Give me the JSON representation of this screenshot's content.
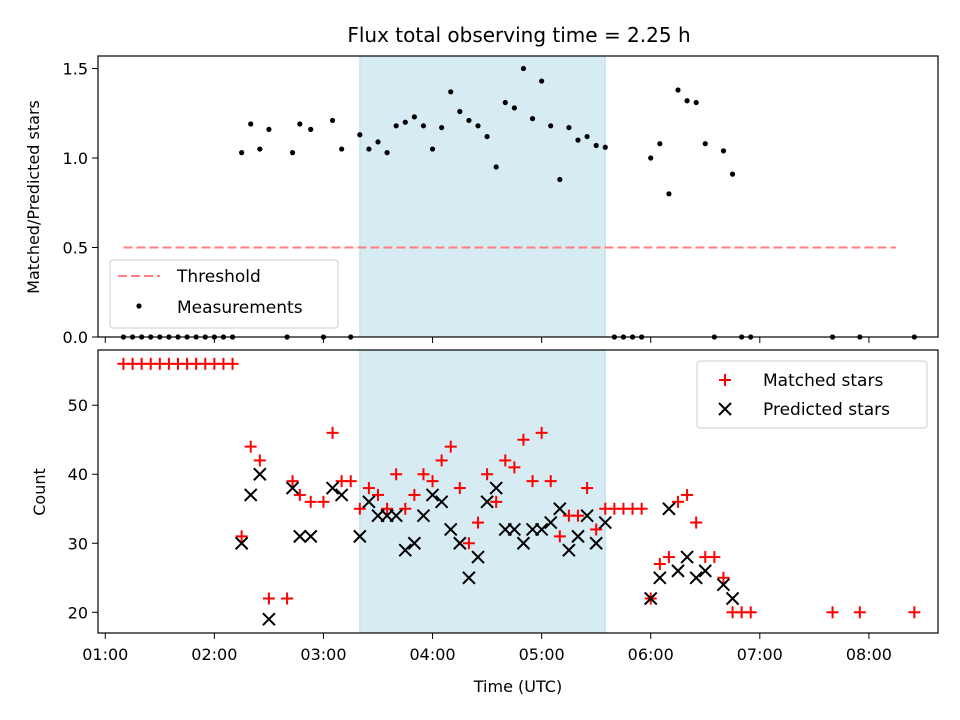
{
  "chart_data": [
    {
      "type": "scatter",
      "title": "Flux total observing time = 2.25 h",
      "ylabel": "Matched/Predicted stars",
      "xlabel": "",
      "ylim": [
        0,
        1.57
      ],
      "xlim": [
        "00:56",
        "08:38"
      ],
      "yticks": [
        "0.0",
        "0.5",
        "1.0",
        "1.5"
      ],
      "shaded_region": [
        "03:20",
        "05:35"
      ],
      "threshold": {
        "name": "Threshold",
        "value": 0.5,
        "x_start": "01:10",
        "x_end": "08:15",
        "color": "#ff7f7f"
      },
      "legend": {
        "placement": "lower-left",
        "entries": [
          "Threshold",
          "Measurements"
        ]
      },
      "series": [
        {
          "name": "Measurements",
          "color": "#000000",
          "points": [
            [
              "01:10",
              0
            ],
            [
              "01:15",
              0
            ],
            [
              "01:20",
              0
            ],
            [
              "01:25",
              0
            ],
            [
              "01:30",
              0
            ],
            [
              "01:35",
              0
            ],
            [
              "01:40",
              0
            ],
            [
              "01:45",
              0
            ],
            [
              "01:50",
              0
            ],
            [
              "01:55",
              0
            ],
            [
              "02:00",
              0
            ],
            [
              "02:05",
              0
            ],
            [
              "02:10",
              0
            ],
            [
              "02:15",
              1.03
            ],
            [
              "02:20",
              1.19
            ],
            [
              "02:25",
              1.05
            ],
            [
              "02:30",
              1.16
            ],
            [
              "02:40",
              0
            ],
            [
              "02:43",
              1.03
            ],
            [
              "02:47",
              1.19
            ],
            [
              "02:53",
              1.16
            ],
            [
              "03:00",
              0
            ],
            [
              "03:05",
              1.21
            ],
            [
              "03:10",
              1.05
            ],
            [
              "03:15",
              0
            ],
            [
              "03:20",
              1.13
            ],
            [
              "03:25",
              1.05
            ],
            [
              "03:30",
              1.09
            ],
            [
              "03:35",
              1.03
            ],
            [
              "03:40",
              1.18
            ],
            [
              "03:45",
              1.2
            ],
            [
              "03:50",
              1.23
            ],
            [
              "03:55",
              1.18
            ],
            [
              "04:00",
              1.05
            ],
            [
              "04:05",
              1.17
            ],
            [
              "04:10",
              1.37
            ],
            [
              "04:15",
              1.26
            ],
            [
              "04:20",
              1.21
            ],
            [
              "04:25",
              1.18
            ],
            [
              "04:30",
              1.12
            ],
            [
              "04:35",
              0.95
            ],
            [
              "04:40",
              1.31
            ],
            [
              "04:45",
              1.28
            ],
            [
              "04:50",
              1.5
            ],
            [
              "04:55",
              1.22
            ],
            [
              "05:00",
              1.43
            ],
            [
              "05:05",
              1.18
            ],
            [
              "05:10",
              0.88
            ],
            [
              "05:15",
              1.17
            ],
            [
              "05:20",
              1.1
            ],
            [
              "05:25",
              1.12
            ],
            [
              "05:30",
              1.07
            ],
            [
              "05:35",
              1.06
            ],
            [
              "05:40",
              0
            ],
            [
              "05:45",
              0
            ],
            [
              "05:50",
              0
            ],
            [
              "05:55",
              0
            ],
            [
              "06:00",
              1.0
            ],
            [
              "06:05",
              1.08
            ],
            [
              "06:10",
              0.8
            ],
            [
              "06:15",
              1.38
            ],
            [
              "06:20",
              1.32
            ],
            [
              "06:25",
              1.31
            ],
            [
              "06:30",
              1.08
            ],
            [
              "06:35",
              0
            ],
            [
              "06:40",
              1.04
            ],
            [
              "06:45",
              0.91
            ],
            [
              "06:50",
              0
            ],
            [
              "06:55",
              0
            ],
            [
              "07:40",
              0
            ],
            [
              "07:55",
              0
            ],
            [
              "08:25",
              0
            ]
          ]
        }
      ]
    },
    {
      "type": "scatter",
      "title": "",
      "ylabel": "Count",
      "xlabel": "Time (UTC)",
      "ylim": [
        17,
        58
      ],
      "xlim": [
        "00:56",
        "08:38"
      ],
      "yticks": [
        "20",
        "30",
        "40",
        "50"
      ],
      "xticks": [
        "01:00",
        "02:00",
        "03:00",
        "04:00",
        "05:00",
        "06:00",
        "07:00",
        "08:00"
      ],
      "shaded_region": [
        "03:20",
        "05:35"
      ],
      "legend": {
        "placement": "upper-right",
        "entries": [
          "Matched stars",
          "Predicted stars"
        ]
      },
      "series": [
        {
          "name": "Matched stars",
          "color": "#ff0000",
          "marker": "plus",
          "points": [
            [
              "01:10",
              56
            ],
            [
              "01:15",
              56
            ],
            [
              "01:20",
              56
            ],
            [
              "01:25",
              56
            ],
            [
              "01:30",
              56
            ],
            [
              "01:35",
              56
            ],
            [
              "01:40",
              56
            ],
            [
              "01:45",
              56
            ],
            [
              "01:50",
              56
            ],
            [
              "01:55",
              56
            ],
            [
              "02:00",
              56
            ],
            [
              "02:05",
              56
            ],
            [
              "02:10",
              56
            ],
            [
              "02:15",
              31
            ],
            [
              "02:20",
              44
            ],
            [
              "02:25",
              42
            ],
            [
              "02:30",
              22
            ],
            [
              "02:40",
              22
            ],
            [
              "02:43",
              39
            ],
            [
              "02:47",
              37
            ],
            [
              "02:53",
              36
            ],
            [
              "03:00",
              36
            ],
            [
              "03:05",
              46
            ],
            [
              "03:10",
              39
            ],
            [
              "03:15",
              39
            ],
            [
              "03:20",
              35
            ],
            [
              "03:25",
              38
            ],
            [
              "03:30",
              37
            ],
            [
              "03:35",
              35
            ],
            [
              "03:40",
              40
            ],
            [
              "03:45",
              35
            ],
            [
              "03:50",
              37
            ],
            [
              "03:55",
              40
            ],
            [
              "04:00",
              39
            ],
            [
              "04:05",
              42
            ],
            [
              "04:10",
              44
            ],
            [
              "04:15",
              38
            ],
            [
              "04:20",
              30
            ],
            [
              "04:25",
              33
            ],
            [
              "04:30",
              40
            ],
            [
              "04:35",
              36
            ],
            [
              "04:40",
              42
            ],
            [
              "04:45",
              41
            ],
            [
              "04:50",
              45
            ],
            [
              "04:55",
              39
            ],
            [
              "05:00",
              46
            ],
            [
              "05:05",
              39
            ],
            [
              "05:10",
              31
            ],
            [
              "05:15",
              34
            ],
            [
              "05:20",
              34
            ],
            [
              "05:25",
              38
            ],
            [
              "05:30",
              32
            ],
            [
              "05:35",
              35
            ],
            [
              "05:40",
              35
            ],
            [
              "05:45",
              35
            ],
            [
              "05:50",
              35
            ],
            [
              "05:55",
              35
            ],
            [
              "06:00",
              22
            ],
            [
              "06:05",
              27
            ],
            [
              "06:10",
              28
            ],
            [
              "06:15",
              36
            ],
            [
              "06:20",
              37
            ],
            [
              "06:25",
              33
            ],
            [
              "06:30",
              28
            ],
            [
              "06:35",
              28
            ],
            [
              "06:40",
              25
            ],
            [
              "06:45",
              20
            ],
            [
              "06:50",
              20
            ],
            [
              "06:55",
              20
            ],
            [
              "07:40",
              20
            ],
            [
              "07:55",
              20
            ],
            [
              "08:25",
              20
            ]
          ]
        },
        {
          "name": "Predicted stars",
          "color": "#000000",
          "marker": "x",
          "points": [
            [
              "02:15",
              30
            ],
            [
              "02:20",
              37
            ],
            [
              "02:25",
              40
            ],
            [
              "02:30",
              19
            ],
            [
              "02:43",
              38
            ],
            [
              "02:47",
              31
            ],
            [
              "02:53",
              31
            ],
            [
              "03:05",
              38
            ],
            [
              "03:10",
              37
            ],
            [
              "03:20",
              31
            ],
            [
              "03:25",
              36
            ],
            [
              "03:30",
              34
            ],
            [
              "03:35",
              34
            ],
            [
              "03:40",
              34
            ],
            [
              "03:45",
              29
            ],
            [
              "03:50",
              30
            ],
            [
              "03:55",
              34
            ],
            [
              "04:00",
              37
            ],
            [
              "04:05",
              36
            ],
            [
              "04:10",
              32
            ],
            [
              "04:15",
              30
            ],
            [
              "04:20",
              25
            ],
            [
              "04:25",
              28
            ],
            [
              "04:30",
              36
            ],
            [
              "04:35",
              38
            ],
            [
              "04:40",
              32
            ],
            [
              "04:45",
              32
            ],
            [
              "04:50",
              30
            ],
            [
              "04:55",
              32
            ],
            [
              "05:00",
              32
            ],
            [
              "05:05",
              33
            ],
            [
              "05:10",
              35
            ],
            [
              "05:15",
              29
            ],
            [
              "05:20",
              31
            ],
            [
              "05:25",
              34
            ],
            [
              "05:30",
              30
            ],
            [
              "05:35",
              33
            ],
            [
              "06:00",
              22
            ],
            [
              "06:05",
              25
            ],
            [
              "06:10",
              35
            ],
            [
              "06:15",
              26
            ],
            [
              "06:20",
              28
            ],
            [
              "06:25",
              25
            ],
            [
              "06:30",
              26
            ],
            [
              "06:40",
              24
            ],
            [
              "06:45",
              22
            ]
          ]
        }
      ]
    }
  ]
}
